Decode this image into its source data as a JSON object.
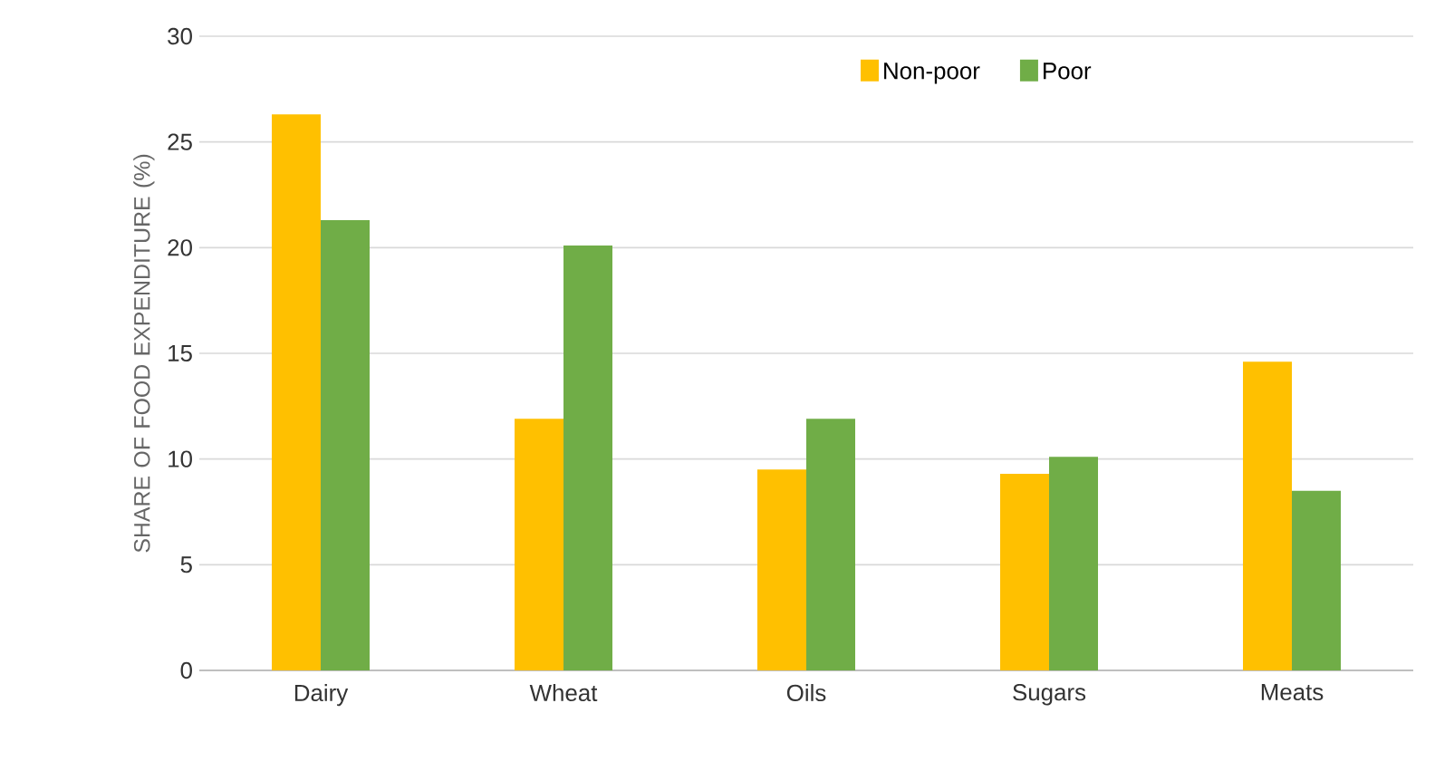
{
  "chart_data": {
    "type": "bar",
    "ylabel": "SHARE OF FOOD EXPENDITURE (%)",
    "categories": [
      "Dairy",
      "Wheat",
      "Oils",
      "Sugars",
      "Meats"
    ],
    "series": [
      {
        "name": "Non-poor",
        "color": "#ffc000",
        "values": [
          26.3,
          11.9,
          9.5,
          9.3,
          14.6
        ]
      },
      {
        "name": "Poor",
        "color": "#70ad47",
        "values": [
          21.3,
          20.1,
          11.9,
          10.1,
          8.5
        ]
      }
    ],
    "ylim": [
      0,
      30
    ],
    "yticks": [
      0,
      5,
      10,
      15,
      20,
      25,
      30
    ],
    "grid": "y",
    "legend": "top right"
  }
}
